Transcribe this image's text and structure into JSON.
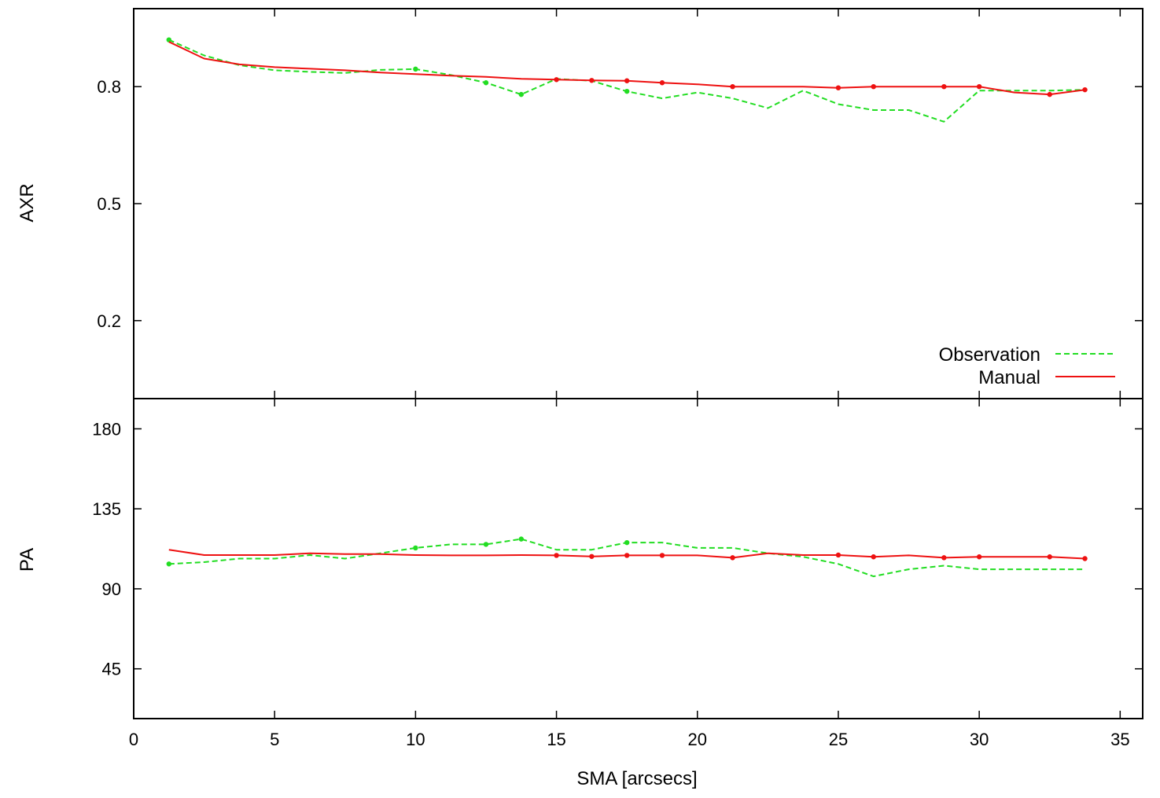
{
  "colors": {
    "observation": "#22dd22",
    "manual": "#ee1111",
    "frame": "#000000"
  },
  "chart_data": [
    {
      "type": "line",
      "ylabel": "AXR",
      "xlim": [
        0,
        35.8
      ],
      "ylim": [
        0,
        1
      ],
      "yticks": [
        "0.2",
        "0.5",
        "0.8"
      ],
      "ytick_values": [
        0.2,
        0.5,
        0.8
      ],
      "legend_position": "bottom-right",
      "series": [
        {
          "name": "Observation",
          "color": "#22dd22",
          "style": "dashed",
          "x": [
            1.25,
            2.5,
            3.75,
            5,
            6.25,
            7.5,
            8.75,
            10,
            11.25,
            12.5,
            13.75,
            15,
            16.25,
            17.5,
            18.75,
            20,
            21.25,
            22.5,
            23.75,
            25,
            26.25,
            27.5,
            28.75,
            30,
            31.25,
            32.5,
            33.75
          ],
          "y": [
            0.92,
            0.88,
            0.855,
            0.842,
            0.838,
            0.835,
            0.843,
            0.845,
            0.83,
            0.81,
            0.78,
            0.82,
            0.815,
            0.788,
            0.77,
            0.785,
            0.77,
            0.745,
            0.79,
            0.755,
            0.74,
            0.74,
            0.71,
            0.79,
            0.79,
            0.79,
            0.792
          ],
          "marker_x": [
            1.25,
            10,
            12.5,
            13.75,
            17.5
          ]
        },
        {
          "name": "Manual",
          "color": "#ee1111",
          "style": "solid",
          "x": [
            1.25,
            2.5,
            3.75,
            5,
            6.25,
            7.5,
            8.75,
            10,
            11.25,
            12.5,
            13.75,
            15,
            16.25,
            17.5,
            18.75,
            20,
            21.25,
            22.5,
            23.75,
            25,
            26.25,
            27.5,
            28.75,
            30,
            31.25,
            32.5,
            33.75
          ],
          "y": [
            0.915,
            0.872,
            0.857,
            0.85,
            0.846,
            0.842,
            0.836,
            0.832,
            0.828,
            0.825,
            0.82,
            0.818,
            0.816,
            0.815,
            0.81,
            0.806,
            0.8,
            0.8,
            0.8,
            0.797,
            0.8,
            0.8,
            0.8,
            0.8,
            0.785,
            0.78,
            0.792
          ],
          "marker_x": [
            15,
            16.25,
            17.5,
            18.75,
            21.25,
            25,
            26.25,
            28.75,
            30,
            32.5,
            33.75
          ]
        }
      ]
    },
    {
      "type": "line",
      "ylabel": "PA",
      "xlabel": "SMA [arcsecs]",
      "xlim": [
        0,
        35.8
      ],
      "ylim": [
        17,
        197
      ],
      "xticks": [
        "0",
        "5",
        "10",
        "15",
        "20",
        "25",
        "30",
        "35"
      ],
      "xtick_values": [
        0,
        5,
        10,
        15,
        20,
        25,
        30,
        35
      ],
      "yticks": [
        "45",
        "90",
        "135",
        "180"
      ],
      "ytick_values": [
        45,
        90,
        135,
        180
      ],
      "series": [
        {
          "name": "Observation",
          "color": "#22dd22",
          "style": "dashed",
          "x": [
            1.25,
            2.5,
            3.75,
            5,
            6.25,
            7.5,
            8.75,
            10,
            11.25,
            12.5,
            13.75,
            15,
            16.25,
            17.5,
            18.75,
            20,
            21.25,
            22.5,
            23.75,
            25,
            26.25,
            27.5,
            28.75,
            30,
            31.25,
            32.5,
            33.75
          ],
          "y": [
            104,
            105,
            107,
            107,
            109,
            107,
            110,
            113,
            115,
            115,
            118,
            112,
            112,
            116,
            116,
            113,
            113,
            110,
            108,
            104,
            97,
            101,
            103,
            101,
            101,
            101,
            101
          ],
          "marker_x": [
            1.25,
            10,
            12.5,
            13.75,
            17.5
          ]
        },
        {
          "name": "Manual",
          "color": "#ee1111",
          "style": "solid",
          "x": [
            1.25,
            2.5,
            3.75,
            5,
            6.25,
            7.5,
            8.75,
            10,
            11.25,
            12.5,
            13.75,
            15,
            16.25,
            17.5,
            18.75,
            20,
            21.25,
            22.5,
            23.75,
            25,
            26.25,
            27.5,
            28.75,
            30,
            31.25,
            32.5,
            33.75
          ],
          "y": [
            112,
            109,
            109,
            109,
            110,
            109.5,
            109.5,
            109,
            108.8,
            108.8,
            109,
            108.8,
            108.2,
            108.8,
            108.8,
            108.8,
            107.5,
            110,
            109,
            109,
            108,
            108.8,
            107.5,
            108,
            108,
            108,
            107
          ],
          "marker_x": [
            15,
            16.25,
            17.5,
            18.75,
            21.25,
            25,
            26.25,
            28.75,
            30,
            32.5,
            33.75
          ]
        }
      ]
    }
  ]
}
